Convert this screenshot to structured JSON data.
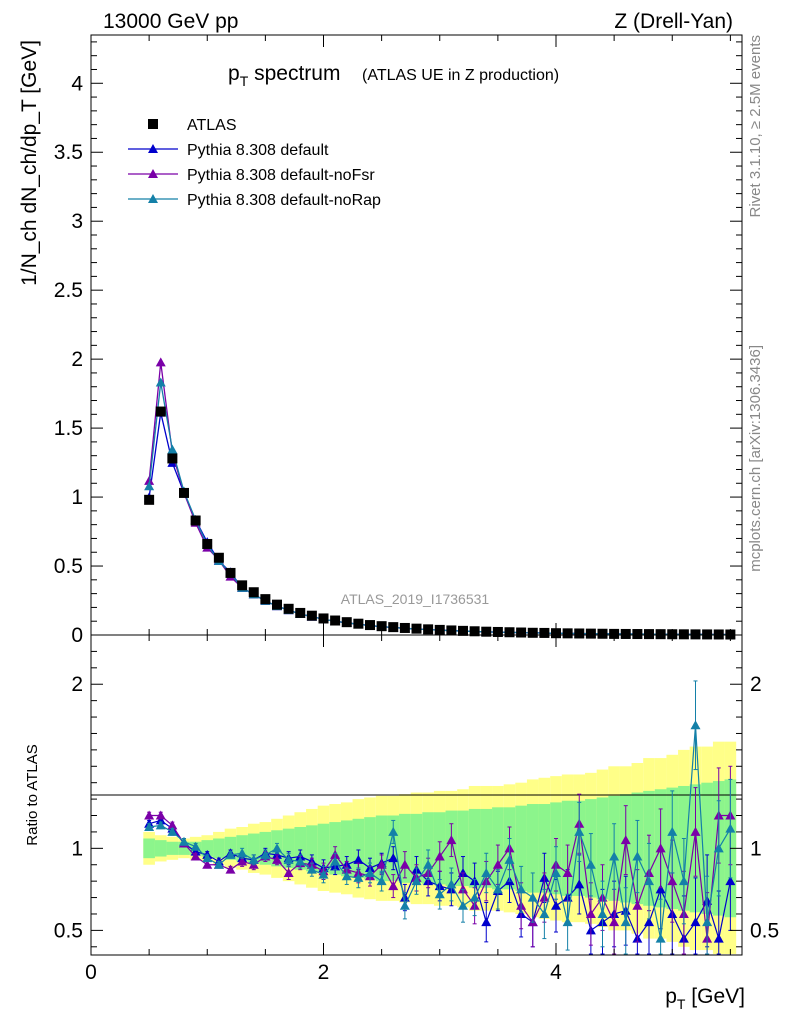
{
  "header": {
    "left": "13000 GeV pp",
    "right": "Z (Drell-Yan)"
  },
  "side_labels": {
    "rivet": "Rivet 3.1.10, ≥ 2.5M events",
    "mcplots": "mcplots.cern.ch [arXiv:1306.3436]"
  },
  "chart_data": [
    {
      "type": "scatter",
      "panel": "main",
      "title_main": "p",
      "title_sub": "T",
      "title_rest": " spectrum",
      "title_paren": "(ATLAS UE in Z production)",
      "analysis_id": "ATLAS_2019_I1736531",
      "ylabel": "1/N_ch dN_ch/dp_T [GeV]",
      "ylim": [
        0,
        4.35
      ],
      "xlim": [
        0,
        5.6
      ],
      "yticks": [
        "0",
        "0.5",
        "1",
        "1.5",
        "2",
        "2.5",
        "3",
        "3.5",
        "4"
      ],
      "x": [
        0.5,
        0.6,
        0.7,
        0.8,
        0.9,
        1.0,
        1.1,
        1.2,
        1.3,
        1.4,
        1.5,
        1.6,
        1.7,
        1.8,
        1.9,
        2.0,
        2.1,
        2.2,
        2.3,
        2.4,
        2.5,
        2.6,
        2.7,
        2.8,
        2.9,
        3.0,
        3.1,
        3.2,
        3.3,
        3.4,
        3.5,
        3.6,
        3.7,
        3.8,
        3.9,
        4.0,
        4.1,
        4.2,
        4.3,
        4.4,
        4.5,
        4.6,
        4.7,
        4.8,
        4.9,
        5.0,
        5.1,
        5.2,
        5.3,
        5.4,
        5.5
      ],
      "series": [
        {
          "name": "ATLAS",
          "color": "#000000",
          "marker": "square",
          "values": [
            0.98,
            1.62,
            1.28,
            1.03,
            0.83,
            0.66,
            0.56,
            0.45,
            0.36,
            0.31,
            0.26,
            0.22,
            0.19,
            0.16,
            0.14,
            0.12,
            0.105,
            0.093,
            0.082,
            0.072,
            0.064,
            0.057,
            0.051,
            0.046,
            0.041,
            0.037,
            0.033,
            0.03,
            0.027,
            0.024,
            0.022,
            0.02,
            0.018,
            0.016,
            0.015,
            0.013,
            0.012,
            0.011,
            0.01,
            0.009,
            0.008,
            0.0075,
            0.007,
            0.0065,
            0.006,
            0.0055,
            0.005,
            0.0046,
            0.0042,
            0.0039,
            0.0036
          ]
        },
        {
          "name": "Pythia 8.308 default",
          "color": "#0000cc",
          "marker": "triangle"
        },
        {
          "name": "Pythia 8.308 default-noFsr",
          "color": "#7a00a8",
          "marker": "triangle"
        },
        {
          "name": "Pythia 8.308 default-noRap",
          "color": "#1480a8",
          "marker": "triangle"
        }
      ]
    },
    {
      "type": "line",
      "panel": "ratio",
      "ylabel": "Ratio to ATLAS",
      "xlabel_main": "p",
      "xlabel_sub": "T",
      "xlabel_rest": " [GeV]",
      "ylim": [
        0.35,
        2.3
      ],
      "xlim": [
        0,
        5.6
      ],
      "xticks": [
        "0",
        "2",
        "4"
      ],
      "yticks": [
        "0.5",
        "1",
        "2"
      ],
      "x": [
        0.5,
        0.6,
        0.7,
        0.8,
        0.9,
        1.0,
        1.1,
        1.2,
        1.3,
        1.4,
        1.5,
        1.6,
        1.7,
        1.8,
        1.9,
        2.0,
        2.1,
        2.2,
        2.3,
        2.4,
        2.5,
        2.6,
        2.7,
        2.8,
        2.9,
        3.0,
        3.1,
        3.2,
        3.3,
        3.4,
        3.5,
        3.6,
        3.7,
        3.8,
        3.9,
        4.0,
        4.1,
        4.2,
        4.3,
        4.4,
        4.5,
        4.6,
        4.7,
        4.8,
        4.9,
        5.0,
        5.1,
        5.2,
        5.3,
        5.4,
        5.5
      ],
      "band_yellow": [
        0.1,
        0.08,
        0.07,
        0.06,
        0.07,
        0.08,
        0.1,
        0.12,
        0.13,
        0.15,
        0.16,
        0.18,
        0.2,
        0.22,
        0.24,
        0.26,
        0.27,
        0.28,
        0.3,
        0.31,
        0.32,
        0.32,
        0.33,
        0.34,
        0.34,
        0.35,
        0.35,
        0.36,
        0.38,
        0.38,
        0.38,
        0.39,
        0.4,
        0.42,
        0.43,
        0.44,
        0.45,
        0.45,
        0.46,
        0.48,
        0.5,
        0.5,
        0.52,
        0.55,
        0.55,
        0.57,
        0.6,
        0.62,
        0.62,
        0.65,
        0.65
      ],
      "band_green": [
        0.06,
        0.05,
        0.04,
        0.04,
        0.04,
        0.05,
        0.06,
        0.07,
        0.08,
        0.09,
        0.1,
        0.11,
        0.12,
        0.13,
        0.14,
        0.15,
        0.16,
        0.17,
        0.18,
        0.19,
        0.2,
        0.2,
        0.21,
        0.21,
        0.22,
        0.22,
        0.23,
        0.23,
        0.24,
        0.24,
        0.25,
        0.25,
        0.26,
        0.27,
        0.27,
        0.28,
        0.29,
        0.29,
        0.3,
        0.31,
        0.32,
        0.33,
        0.34,
        0.35,
        0.36,
        0.37,
        0.38,
        0.39,
        0.4,
        0.41,
        0.42
      ],
      "series": [
        {
          "name": "Pythia 8.308 default",
          "color": "#0000cc",
          "values": [
            1.15,
            1.17,
            1.12,
            1.03,
            0.98,
            0.96,
            0.92,
            0.97,
            0.94,
            0.93,
            0.97,
            0.96,
            0.94,
            0.95,
            0.92,
            0.88,
            0.89,
            0.9,
            0.93,
            0.88,
            0.91,
            0.94,
            0.7,
            0.87,
            0.8,
            0.77,
            0.75,
            0.85,
            0.8,
            0.55,
            0.74,
            0.8,
            0.6,
            0.55,
            0.82,
            0.65,
            0.7,
            0.78,
            0.5,
            0.55,
            0.6,
            0.62,
            0.45,
            0.55,
            0.75,
            0.6,
            0.45,
            0.55,
            0.68,
            0.45,
            0.8
          ],
          "errors": [
            0.02,
            0.02,
            0.02,
            0.02,
            0.02,
            0.02,
            0.02,
            0.02,
            0.03,
            0.03,
            0.03,
            0.03,
            0.04,
            0.04,
            0.04,
            0.05,
            0.05,
            0.05,
            0.06,
            0.06,
            0.06,
            0.07,
            0.08,
            0.08,
            0.09,
            0.09,
            0.1,
            0.1,
            0.11,
            0.12,
            0.12,
            0.13,
            0.14,
            0.15,
            0.15,
            0.16,
            0.17,
            0.18,
            0.19,
            0.2,
            0.2,
            0.21,
            0.22,
            0.23,
            0.24,
            0.25,
            0.26,
            0.27,
            0.28,
            0.29,
            0.3
          ]
        },
        {
          "name": "Pythia 8.308 default-noFsr",
          "color": "#7a00a8",
          "values": [
            1.2,
            1.2,
            1.14,
            1.03,
            0.95,
            0.9,
            0.9,
            0.87,
            0.92,
            0.9,
            0.95,
            0.93,
            0.85,
            0.91,
            0.9,
            0.86,
            0.96,
            0.87,
            0.85,
            0.83,
            0.9,
            0.77,
            0.9,
            0.82,
            0.85,
            0.95,
            1.05,
            0.75,
            0.65,
            0.8,
            0.9,
            1.0,
            0.65,
            0.55,
            0.7,
            0.9,
            0.85,
            1.15,
            0.6,
            0.7,
            0.55,
            1.05,
            0.65,
            0.85,
            1.0,
            0.8,
            0.6,
            1.1,
            0.45,
            1.2,
            1.2
          ],
          "errors": [
            0.02,
            0.02,
            0.02,
            0.02,
            0.02,
            0.02,
            0.02,
            0.02,
            0.03,
            0.03,
            0.03,
            0.03,
            0.04,
            0.04,
            0.04,
            0.05,
            0.05,
            0.05,
            0.06,
            0.06,
            0.06,
            0.07,
            0.08,
            0.08,
            0.09,
            0.09,
            0.1,
            0.1,
            0.11,
            0.12,
            0.12,
            0.13,
            0.14,
            0.15,
            0.15,
            0.16,
            0.17,
            0.18,
            0.19,
            0.2,
            0.2,
            0.21,
            0.22,
            0.23,
            0.24,
            0.25,
            0.26,
            0.27,
            0.28,
            0.29,
            0.3
          ]
        },
        {
          "name": "Pythia 8.308 default-noRap",
          "color": "#1480a8",
          "values": [
            1.13,
            1.14,
            1.1,
            1.04,
            1.01,
            0.94,
            0.9,
            0.96,
            0.97,
            0.93,
            0.96,
            1.0,
            0.93,
            0.92,
            0.87,
            0.84,
            0.92,
            0.83,
            0.82,
            0.85,
            0.8,
            1.1,
            0.65,
            0.8,
            0.9,
            0.72,
            0.78,
            0.65,
            0.7,
            0.85,
            0.75,
            0.93,
            0.75,
            0.7,
            0.6,
            0.85,
            0.55,
            1.1,
            0.9,
            0.6,
            0.95,
            0.55,
            0.95,
            0.8,
            0.45,
            1.1,
            0.8,
            1.75,
            0.55,
            1.0,
            1.12
          ],
          "errors": [
            0.02,
            0.02,
            0.02,
            0.02,
            0.02,
            0.02,
            0.02,
            0.02,
            0.03,
            0.03,
            0.03,
            0.03,
            0.04,
            0.04,
            0.04,
            0.05,
            0.05,
            0.05,
            0.06,
            0.06,
            0.06,
            0.07,
            0.08,
            0.08,
            0.09,
            0.09,
            0.1,
            0.1,
            0.11,
            0.12,
            0.12,
            0.13,
            0.14,
            0.15,
            0.15,
            0.16,
            0.17,
            0.18,
            0.19,
            0.2,
            0.2,
            0.21,
            0.22,
            0.23,
            0.24,
            0.25,
            0.26,
            0.27,
            0.28,
            0.29,
            0.3
          ]
        }
      ]
    }
  ]
}
